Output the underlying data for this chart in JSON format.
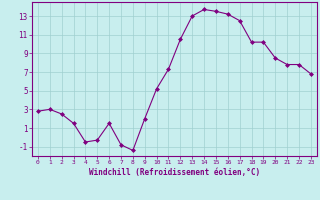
{
  "x": [
    0,
    1,
    2,
    3,
    4,
    5,
    6,
    7,
    8,
    9,
    10,
    11,
    12,
    13,
    14,
    15,
    16,
    17,
    18,
    19,
    20,
    21,
    22,
    23
  ],
  "y": [
    2.8,
    3.0,
    2.5,
    1.5,
    -0.5,
    -0.3,
    1.5,
    -0.8,
    -1.4,
    2.0,
    5.2,
    7.3,
    10.5,
    13.0,
    13.7,
    13.5,
    13.2,
    12.5,
    10.2,
    10.2,
    8.5,
    7.8,
    7.8,
    6.8
  ],
  "line_color": "#800080",
  "marker": "D",
  "marker_size": 2,
  "bg_color": "#c8eeee",
  "grid_color": "#a0d0d0",
  "xlabel": "Windchill (Refroidissement éolien,°C)",
  "xlabel_color": "#800080",
  "tick_color": "#800080",
  "ylim": [
    -2,
    14.5
  ],
  "yticks": [
    -1,
    1,
    3,
    5,
    7,
    9,
    11,
    13
  ],
  "xlim": [
    -0.5,
    23.5
  ],
  "xticks": [
    0,
    1,
    2,
    3,
    4,
    5,
    6,
    7,
    8,
    9,
    10,
    11,
    12,
    13,
    14,
    15,
    16,
    17,
    18,
    19,
    20,
    21,
    22,
    23
  ],
  "spine_color": "#800080",
  "figsize": [
    3.2,
    2.0
  ],
  "dpi": 100
}
